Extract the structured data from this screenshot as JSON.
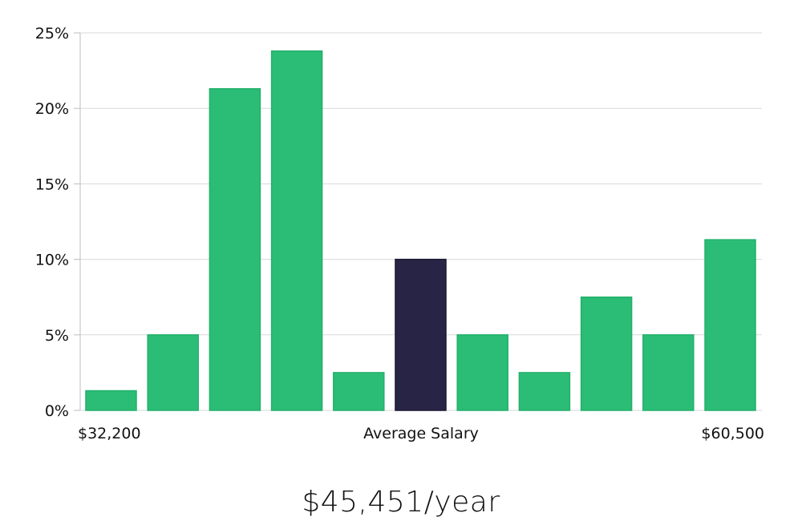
{
  "chart_data": {
    "type": "bar",
    "categories": [
      "1",
      "2",
      "3",
      "4",
      "5",
      "6",
      "7",
      "8",
      "9",
      "10",
      "11"
    ],
    "values": [
      1.3,
      5.0,
      21.3,
      23.8,
      2.5,
      10.0,
      5.0,
      2.5,
      7.5,
      5.0,
      11.3
    ],
    "highlight_index": 5,
    "ylim": [
      0,
      25
    ],
    "yticks": [
      0,
      5,
      10,
      15,
      20,
      25
    ],
    "ytick_labels": [
      "0%",
      "5%",
      "10%",
      "15%",
      "20%",
      "25%"
    ],
    "x_labels": {
      "min": "$32,200",
      "center": "Average Salary",
      "max": "$60,500"
    },
    "grid": true,
    "colors": {
      "bar": "#2bbd76",
      "bar_stroke": "#22b06b",
      "highlight": "#282445",
      "grid": "#d9d9d9",
      "axis": "#bdbdbd"
    }
  },
  "headline": "$45,451/year"
}
